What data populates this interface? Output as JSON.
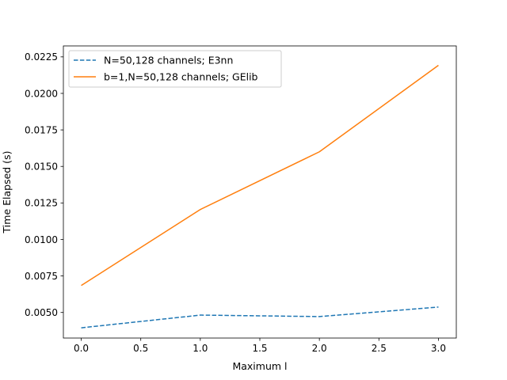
{
  "chart_data": {
    "type": "line",
    "title": "",
    "xlabel": "Maximum l",
    "ylabel": "Time Elapsed (s)",
    "xlim": [
      -0.15,
      3.15
    ],
    "ylim": [
      0.00325,
      0.02325
    ],
    "xticks": [
      0.0,
      0.5,
      1.0,
      1.5,
      2.0,
      2.5,
      3.0
    ],
    "xtick_labels": [
      "0.0",
      "0.5",
      "1.0",
      "1.5",
      "2.0",
      "2.5",
      "3.0"
    ],
    "yticks": [
      0.005,
      0.0075,
      0.01,
      0.0125,
      0.015,
      0.0175,
      0.02,
      0.0225
    ],
    "ytick_labels": [
      "0.0050",
      "0.0075",
      "0.0100",
      "0.0125",
      "0.0150",
      "0.0175",
      "0.0200",
      "0.0225"
    ],
    "grid": false,
    "legend_position": "top-left",
    "series": [
      {
        "name": "N=50,128 channels; E3nn",
        "x": [
          0,
          1,
          2,
          3
        ],
        "values": [
          0.00395,
          0.00482,
          0.00472,
          0.00537
        ],
        "color": "#1f77b4",
        "style": "dashed"
      },
      {
        "name": "b=1,N=50,128 channels; GElib",
        "x": [
          0,
          1,
          2,
          3
        ],
        "values": [
          0.00685,
          0.01205,
          0.016,
          0.02192
        ],
        "color": "#ff7f0e",
        "style": "solid"
      }
    ]
  }
}
